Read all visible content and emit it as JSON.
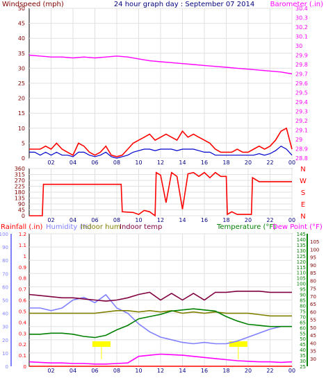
{
  "title": "24 hour graph day : September 07 2014",
  "chart_data": [
    {
      "type": "line",
      "panel": "wind-barometer",
      "left_axis_label": "Windspeed (mph)",
      "right_axis_label": "Barometer (.in)",
      "left_ticks": [
        0,
        5,
        10,
        15,
        20,
        25,
        30,
        35,
        40,
        45,
        50
      ],
      "left_ylim": [
        0,
        50
      ],
      "right_ticks": [
        28.8,
        28.9,
        29,
        29.1,
        29.2,
        29.3,
        29.4,
        29.5,
        29.6,
        29.7,
        29.8,
        29.9,
        30,
        30.1,
        30.2,
        30.3,
        30.4
      ],
      "right_ylim": [
        28.8,
        30.4
      ],
      "x_ticks": [
        "02",
        "04",
        "06",
        "08",
        "10",
        "12",
        "14",
        "16",
        "18",
        "20",
        "22",
        "00"
      ],
      "xlim": [
        0,
        24
      ],
      "colors": {
        "gust": "#ff0000",
        "average": "#0000cc",
        "barometer": "#ff00ff",
        "left_axis": "#800000",
        "right_axis": "#ff00ff"
      },
      "series": [
        {
          "key": "gust",
          "x": [
            0,
            0.5,
            1,
            1.5,
            2,
            2.5,
            3,
            3.5,
            4,
            4.5,
            5,
            5.5,
            6,
            6.5,
            7,
            7.5,
            8,
            8.5,
            9,
            9.5,
            10,
            10.5,
            11,
            11.5,
            12,
            12.5,
            13,
            13.5,
            14,
            14.5,
            15,
            15.5,
            16,
            16.5,
            17,
            17.5,
            18,
            18.5,
            19,
            19.5,
            20,
            20.5,
            21,
            21.5,
            22,
            22.5,
            23,
            23.5,
            24
          ],
          "y": [
            3,
            3,
            3,
            4,
            3,
            5,
            3,
            2,
            1,
            5,
            4,
            2,
            1,
            2,
            4,
            1,
            0.5,
            1,
            3,
            5,
            6,
            7,
            8,
            6,
            7,
            8,
            7,
            6,
            9,
            7,
            8,
            7,
            6,
            5,
            3,
            2,
            2,
            2,
            3,
            2,
            2,
            3,
            4,
            3,
            4,
            6,
            9,
            10,
            3
          ]
        },
        {
          "key": "average",
          "x": [
            0,
            0.5,
            1,
            1.5,
            2,
            2.5,
            3,
            3.5,
            4,
            4.5,
            5,
            5.5,
            6,
            6.5,
            7,
            7.5,
            8,
            8.5,
            9,
            9.5,
            10,
            10.5,
            11,
            11.5,
            12,
            12.5,
            13,
            13.5,
            14,
            14.5,
            15,
            15.5,
            16,
            16.5,
            17,
            17.5,
            18,
            18.5,
            19,
            19.5,
            20,
            20.5,
            21,
            21.5,
            22,
            22.5,
            23,
            23.5,
            24
          ],
          "y": [
            2,
            2,
            1,
            2,
            1,
            2,
            1,
            1,
            0.5,
            2,
            2,
            1,
            0.5,
            1,
            2,
            0.5,
            0,
            0.5,
            1,
            2,
            2.5,
            3,
            3,
            2.5,
            3,
            3,
            3,
            2.5,
            3,
            3,
            3,
            2.5,
            2,
            2,
            1,
            1,
            1,
            1,
            1,
            1,
            1,
            1,
            1.5,
            1,
            1.5,
            2.5,
            4,
            3,
            1
          ]
        },
        {
          "key": "barometer",
          "x": [
            0,
            1,
            2,
            3,
            4,
            5,
            6,
            7,
            8,
            9,
            10,
            11,
            12,
            13,
            14,
            15,
            16,
            17,
            18,
            19,
            20,
            21,
            22,
            23,
            24
          ],
          "y": [
            29.9,
            29.89,
            29.88,
            29.88,
            29.87,
            29.88,
            29.87,
            29.88,
            29.89,
            29.88,
            29.86,
            29.84,
            29.83,
            29.82,
            29.81,
            29.8,
            29.79,
            29.78,
            29.77,
            29.76,
            29.75,
            29.74,
            29.73,
            29.72,
            29.7
          ]
        }
      ]
    },
    {
      "type": "line",
      "panel": "wind-direction",
      "left_ticks": [
        0,
        45,
        90,
        135,
        180,
        225,
        270,
        315,
        360
      ],
      "left_ylim": [
        0,
        360
      ],
      "right_ticks": [
        "N",
        "W",
        "S",
        "E",
        "N"
      ],
      "x_ticks": [
        "02",
        "04",
        "06",
        "08",
        "10",
        "12",
        "14",
        "16",
        "18",
        "20",
        "22",
        "00"
      ],
      "xlim": [
        0,
        24
      ],
      "color": "#ff0000",
      "series": [
        {
          "key": "direction",
          "x": [
            0,
            1.2,
            1.3,
            2,
            7.9,
            8.4,
            8.5,
            9.5,
            10,
            10.5,
            11,
            11.5,
            11.6,
            12,
            12.5,
            13,
            13.5,
            14,
            14.5,
            15,
            15.5,
            16,
            16.5,
            17,
            17.5,
            18,
            18.1,
            18.5,
            19,
            19.5,
            20,
            20.3,
            20.4,
            21,
            22,
            23,
            24
          ],
          "y": [
            0,
            0,
            240,
            240,
            240,
            240,
            30,
            25,
            10,
            40,
            30,
            0,
            330,
            310,
            100,
            330,
            300,
            50,
            320,
            330,
            300,
            330,
            290,
            330,
            300,
            300,
            10,
            30,
            10,
            10,
            10,
            10,
            290,
            260,
            260,
            260,
            260
          ]
        }
      ]
    },
    {
      "type": "line",
      "panel": "rain-humidity-temperature",
      "legend_labels": [
        "Rainfall (.in)",
        "Humidity (%)",
        "Indoor hum",
        "Indoor temp",
        "Temperature (°F)",
        "Dew Point (°F)"
      ],
      "ticks_rainfall": [
        0,
        0.1,
        0.2,
        0.3,
        0.4,
        0.5,
        0.6,
        0.7,
        0.8,
        0.9,
        1,
        1.1,
        1.2
      ],
      "rainfall_ylim": [
        0,
        1.2
      ],
      "ticks_humidity": [
        0,
        10,
        20,
        30,
        40,
        50,
        60,
        70,
        80,
        90,
        100
      ],
      "humidity_ylim": [
        0,
        100
      ],
      "ticks_temperature": [
        25,
        30,
        35,
        40,
        45,
        50,
        55,
        60,
        65,
        70,
        75,
        80,
        85,
        90,
        95,
        100,
        105,
        110,
        115,
        120,
        125,
        130,
        135,
        140,
        145
      ],
      "temperature_ylim": [
        25,
        145
      ],
      "ticks_dewpoint": [
        30,
        35,
        40,
        45,
        50,
        55,
        60,
        65,
        70,
        75,
        80,
        85,
        90,
        95,
        100,
        105
      ],
      "dewpoint_ylim": [
        25,
        110
      ],
      "x_ticks": [
        "02",
        "04",
        "06",
        "08",
        "10",
        "12",
        "14",
        "16",
        "18",
        "20",
        "22",
        "00"
      ],
      "xlim": [
        0,
        24
      ],
      "markers": [
        {
          "x": 6.6,
          "label": ""
        },
        {
          "x": 19.1,
          "label": ""
        }
      ],
      "colors": {
        "rainfall": "#ff0000",
        "humidity": "#8080ff",
        "indoor_hum": "#808000",
        "indoor_temp": "#800040",
        "temperature": "#008000",
        "dewpoint": "#ff00ff",
        "marker": "#ffff00"
      },
      "series": [
        {
          "key": "rainfall",
          "scale": "rainfall",
          "x": [
            0,
            24
          ],
          "y": [
            0,
            0
          ]
        },
        {
          "key": "humidity",
          "scale": "humidity",
          "x": [
            0,
            1,
            2,
            3,
            4,
            5,
            6,
            7,
            8,
            9,
            10,
            11,
            12,
            13,
            14,
            15,
            16,
            17,
            18,
            19,
            20,
            21,
            22,
            23,
            24
          ],
          "y": [
            44,
            44,
            42,
            44,
            50,
            52,
            48,
            54,
            44,
            40,
            32,
            26,
            22,
            20,
            18,
            17,
            18,
            17,
            17,
            19,
            22,
            25,
            28,
            30,
            30
          ]
        },
        {
          "key": "indoor_hum",
          "scale": "humidity",
          "x": [
            0,
            1,
            2,
            3,
            4,
            5,
            6,
            7,
            8,
            9,
            10,
            11,
            12,
            13,
            14,
            15,
            16,
            17,
            18,
            19,
            20,
            21,
            22,
            23,
            24
          ],
          "y": [
            40,
            40,
            40,
            40,
            40,
            40,
            40,
            41,
            42,
            42,
            41,
            42,
            41,
            42,
            40,
            41,
            40,
            41,
            40,
            40,
            40,
            39,
            38,
            38,
            38
          ]
        },
        {
          "key": "indoor_temp",
          "scale": "temperature",
          "x": [
            0,
            1,
            2,
            3,
            4,
            5,
            6,
            7,
            8,
            9,
            10,
            11,
            12,
            13,
            14,
            15,
            16,
            17,
            18,
            19,
            20,
            21,
            22,
            23,
            24
          ],
          "y": [
            90,
            89,
            88,
            87,
            87,
            86,
            85,
            84,
            85,
            87,
            90,
            92,
            85,
            91,
            85,
            91,
            85,
            92,
            92,
            93,
            93,
            93,
            92,
            92,
            92
          ]
        },
        {
          "key": "temperature",
          "scale": "temperature",
          "x": [
            0,
            1,
            2,
            3,
            4,
            5,
            6,
            7,
            8,
            9,
            10,
            11,
            12,
            13,
            14,
            15,
            16,
            17,
            18,
            19,
            20,
            21,
            22,
            23,
            24
          ],
          "y": [
            54,
            54,
            55,
            55,
            54,
            52,
            51,
            53,
            58,
            62,
            68,
            70,
            72,
            75,
            76,
            77,
            76,
            75,
            70,
            66,
            63,
            62,
            61,
            61,
            61
          ]
        },
        {
          "key": "dewpoint",
          "scale": "temperature",
          "x": [
            0,
            1,
            2,
            3,
            4,
            5,
            6,
            7,
            8,
            9,
            10,
            11,
            12,
            13,
            14,
            15,
            16,
            17,
            18,
            19,
            20,
            21,
            22,
            23,
            24
          ],
          "y": [
            29,
            28.5,
            28,
            28,
            27.5,
            27.5,
            27,
            27,
            27.5,
            28,
            34,
            35,
            36,
            35.5,
            35,
            34,
            33,
            32,
            31,
            30,
            29.5,
            29,
            29,
            28.5,
            29
          ]
        }
      ]
    }
  ]
}
